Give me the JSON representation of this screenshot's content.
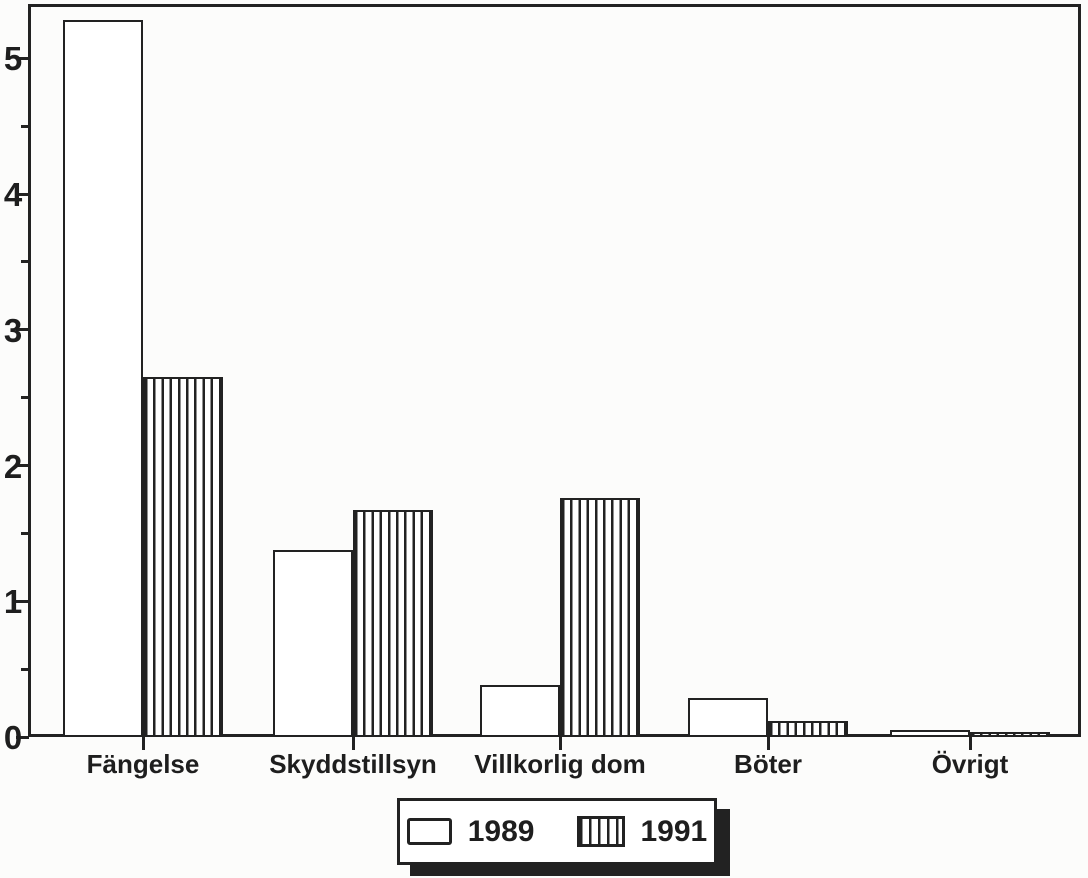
{
  "chart_data": {
    "type": "bar",
    "title": "",
    "xlabel": "",
    "ylabel": "",
    "categories": [
      "Fängelse",
      "Skyddstillsyn",
      "Villkorlig dom",
      "Böter",
      "Övrigt"
    ],
    "series": [
      {
        "name": "1989",
        "pattern": "solid-white",
        "values": [
          5.28,
          1.38,
          0.38,
          0.29,
          0.05
        ]
      },
      {
        "name": "1991",
        "pattern": "vertical-stripes",
        "values": [
          2.65,
          1.67,
          1.76,
          0.12,
          0.04
        ]
      }
    ],
    "ylim": [
      0,
      5.4
    ],
    "y_major_ticks": [
      0,
      1,
      2,
      3,
      4,
      5
    ],
    "y_minor_tick_interval": 0.5,
    "grid": false,
    "legend_position": "bottom-center"
  },
  "legend": {
    "items": [
      {
        "label": "1989",
        "swatch": "solid-white-swatch"
      },
      {
        "label": "1991",
        "swatch": "vertical-stripes-swatch"
      }
    ]
  },
  "colors": {
    "ink": "#222222",
    "paper": "#fcfcfb",
    "bar_fill": "#ffffff"
  }
}
